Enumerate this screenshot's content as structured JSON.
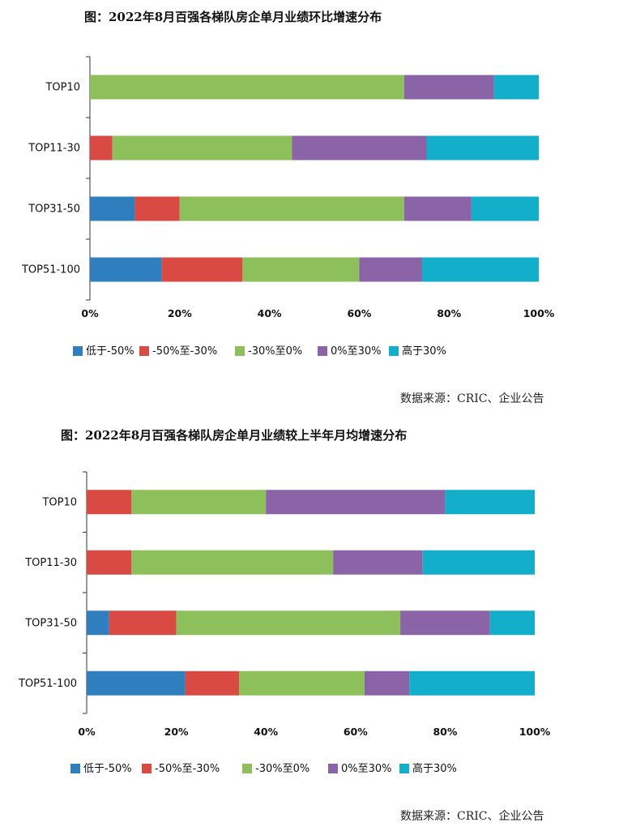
{
  "chart_data": [
    {
      "type": "bar",
      "orientation": "horizontal",
      "stacked": true,
      "title": "图：2022年8月百强各梯队房企单月业绩环比增速分布",
      "categories": [
        "TOP10",
        "TOP11-30",
        "TOP31-50",
        "TOP51-100"
      ],
      "series": [
        {
          "name": "低于-50%",
          "color": "#2f7ebd",
          "values": [
            0,
            0,
            10,
            16
          ]
        },
        {
          "name": "-50%至-30%",
          "color": "#d94a44",
          "values": [
            0,
            5,
            10,
            18
          ]
        },
        {
          "name": "-30%至0%",
          "color": "#8dc05b",
          "values": [
            70,
            40,
            50,
            26
          ]
        },
        {
          "name": "0%至30%",
          "color": "#8b64a8",
          "values": [
            20,
            30,
            15,
            14
          ]
        },
        {
          "name": "高于30%",
          "color": "#13afca",
          "values": [
            10,
            25,
            15,
            26
          ]
        }
      ],
      "xlim": [
        0,
        100
      ],
      "xticks": [
        "0%",
        "20%",
        "40%",
        "60%",
        "80%",
        "100%"
      ],
      "legend": "bottom",
      "source": "数据来源：CRIC、企业公告"
    },
    {
      "type": "bar",
      "orientation": "horizontal",
      "stacked": true,
      "title": "图：2022年8月百强各梯队房企单月业绩较上半年月均增速分布",
      "categories": [
        "TOP10",
        "TOP11-30",
        "TOP31-50",
        "TOP51-100"
      ],
      "series": [
        {
          "name": "低于-50%",
          "color": "#2f7ebd",
          "values": [
            0,
            0,
            5,
            22
          ]
        },
        {
          "name": "-50%至-30%",
          "color": "#d94a44",
          "values": [
            10,
            10,
            15,
            12
          ]
        },
        {
          "name": "-30%至0%",
          "color": "#8dc05b",
          "values": [
            30,
            45,
            50,
            28
          ]
        },
        {
          "name": "0%至30%",
          "color": "#8b64a8",
          "values": [
            40,
            20,
            20,
            10
          ]
        },
        {
          "name": "高于30%",
          "color": "#13afca",
          "values": [
            20,
            25,
            10,
            28
          ]
        }
      ],
      "xlim": [
        0,
        100
      ],
      "xticks": [
        "0%",
        "20%",
        "40%",
        "60%",
        "80%",
        "100%"
      ],
      "legend": "bottom",
      "source": "数据来源：CRIC、企业公告"
    }
  ]
}
